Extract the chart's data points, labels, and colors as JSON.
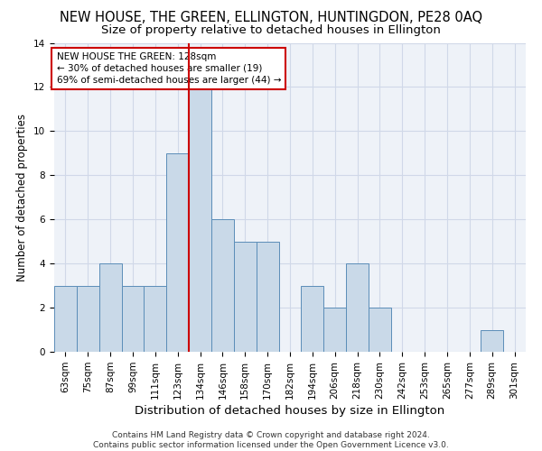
{
  "title": "NEW HOUSE, THE GREEN, ELLINGTON, HUNTINGDON, PE28 0AQ",
  "subtitle": "Size of property relative to detached houses in Ellington",
  "xlabel": "Distribution of detached houses by size in Ellington",
  "ylabel": "Number of detached properties",
  "footer_line1": "Contains HM Land Registry data © Crown copyright and database right 2024.",
  "footer_line2": "Contains public sector information licensed under the Open Government Licence v3.0.",
  "categories": [
    "63sqm",
    "75sqm",
    "87sqm",
    "99sqm",
    "111sqm",
    "123sqm",
    "134sqm",
    "146sqm",
    "158sqm",
    "170sqm",
    "182sqm",
    "194sqm",
    "206sqm",
    "218sqm",
    "230sqm",
    "242sqm",
    "253sqm",
    "265sqm",
    "277sqm",
    "289sqm",
    "301sqm"
  ],
  "values": [
    3,
    3,
    4,
    3,
    3,
    9,
    12,
    6,
    5,
    5,
    0,
    3,
    2,
    4,
    2,
    0,
    0,
    0,
    0,
    1,
    0
  ],
  "bar_color": "#c9d9e8",
  "bar_edge_color": "#5b8db8",
  "highlight_line_color": "#cc0000",
  "highlight_line_xindex": 5.5,
  "annotation_line1": "NEW HOUSE THE GREEN: 128sqm",
  "annotation_line2": "← 30% of detached houses are smaller (19)",
  "annotation_line3": "69% of semi-detached houses are larger (44) →",
  "annotation_box_color": "#cc0000",
  "ylim": [
    0,
    14
  ],
  "yticks": [
    0,
    2,
    4,
    6,
    8,
    10,
    12,
    14
  ],
  "grid_color": "#d0d8e8",
  "background_color": "#eef2f8",
  "title_fontsize": 10.5,
  "subtitle_fontsize": 9.5,
  "ylabel_fontsize": 8.5,
  "xlabel_fontsize": 9.5,
  "tick_fontsize": 7.5,
  "annotation_fontsize": 7.5,
  "footer_fontsize": 6.5
}
